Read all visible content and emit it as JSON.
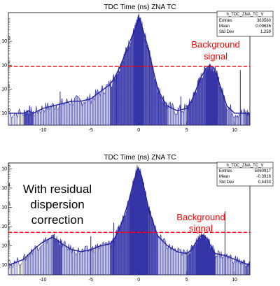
{
  "colors": {
    "histogram": "#1f1f9e",
    "threshold": "#ff0000",
    "annotation": "#ff0000",
    "frame": "#000000"
  },
  "chart_data": [
    {
      "type": "line",
      "title": "TDC Time (ns) ZNA TC",
      "stats": {
        "name": "h_TDC_ZNA_TC_V",
        "rows": [
          {
            "label": "Entries",
            "value": "363560"
          },
          {
            "label": "Mean",
            "value": "0.09636"
          },
          {
            "label": "Std Dev",
            "value": "1.259"
          }
        ]
      },
      "xlim": [
        -13.6,
        11.6
      ],
      "ylog": true,
      "ylim_log10": [
        -0.5,
        4.2
      ],
      "x_ticks": [
        {
          "v": -10,
          "label": "-10"
        },
        {
          "v": -5,
          "label": "-5"
        },
        {
          "v": 0,
          "label": "0"
        },
        {
          "v": 5,
          "label": "5"
        },
        {
          "v": 10,
          "label": "10"
        }
      ],
      "y_ticks": [
        {
          "v": 0,
          "label": "10"
        },
        {
          "v": 1,
          "label": "10"
        },
        {
          "v": 2,
          "label": "10"
        },
        {
          "v": 3,
          "label": "10"
        }
      ],
      "threshold_log10": 1.95,
      "annotations": {
        "background": [
          "Background",
          "signal"
        ]
      },
      "spikes": [
        {
          "x": -8.2,
          "log10": 0.9
        },
        {
          "x": -2.3,
          "log10": 1.6
        },
        {
          "x": 4.4,
          "log10": 0.7
        },
        {
          "x": 10.6,
          "log10": 1.8
        }
      ],
      "series": [
        {
          "values": [
            [
              -13.6,
              0.0
            ],
            [
              -12,
              0.0
            ],
            [
              -11.5,
              0.1
            ],
            [
              -11,
              0.0
            ],
            [
              -10,
              0.2
            ],
            [
              -9,
              0.3
            ],
            [
              -8,
              0.4
            ],
            [
              -7,
              0.5
            ],
            [
              -6,
              0.5
            ],
            [
              -5,
              0.6
            ],
            [
              -4,
              0.9
            ],
            [
              -3,
              1.2
            ],
            [
              -2.5,
              1.5
            ],
            [
              -2,
              1.9
            ],
            [
              -1.5,
              2.4
            ],
            [
              -1,
              2.9
            ],
            [
              -0.5,
              3.4
            ],
            [
              -0.2,
              3.7
            ],
            [
              0,
              3.95
            ],
            [
              0.2,
              3.8
            ],
            [
              0.5,
              3.4
            ],
            [
              1,
              2.7
            ],
            [
              1.5,
              1.8
            ],
            [
              2,
              1.0
            ],
            [
              2.5,
              0.6
            ],
            [
              3,
              0.3
            ],
            [
              4,
              0.1
            ],
            [
              5,
              0.2
            ],
            [
              5.5,
              0.5
            ],
            [
              6,
              1.0
            ],
            [
              6.5,
              1.5
            ],
            [
              7,
              1.85
            ],
            [
              7.4,
              2.0
            ],
            [
              7.8,
              1.9
            ],
            [
              8.2,
              1.5
            ],
            [
              8.7,
              0.9
            ],
            [
              9.2,
              0.3
            ],
            [
              10,
              0.0
            ],
            [
              11,
              0.0
            ],
            [
              11.6,
              0.0
            ]
          ]
        }
      ]
    },
    {
      "type": "line",
      "title": "TDC Time (ns) ZNA TC",
      "stats": {
        "name": "h_TDC_ZNA_TC_V",
        "rows": [
          {
            "label": "Entries",
            "value": "5060917"
          },
          {
            "label": "Mean",
            "value": "-0.3916"
          },
          {
            "label": "Std Dev",
            "value": "0.4433"
          }
        ]
      },
      "xlim": [
        -13.6,
        11.6
      ],
      "ylog": true,
      "ylim_log10": [
        -0.5,
        5.3
      ],
      "x_ticks": [
        {
          "v": -10,
          "label": "-10"
        },
        {
          "v": -5,
          "label": "-5"
        },
        {
          "v": 0,
          "label": "0"
        },
        {
          "v": 5,
          "label": "5"
        },
        {
          "v": 10,
          "label": "10"
        }
      ],
      "y_ticks": [
        {
          "v": 0,
          "label": "10"
        },
        {
          "v": 1,
          "label": "10"
        },
        {
          "v": 2,
          "label": "10"
        },
        {
          "v": 3,
          "label": "10"
        },
        {
          "v": 4,
          "label": "10"
        },
        {
          "v": 5,
          "label": "10"
        }
      ],
      "threshold_log10": 1.7,
      "annotations": {
        "residual": [
          "With residual",
          "dispersion",
          "correction"
        ],
        "background": [
          "Background",
          "signal"
        ]
      },
      "spikes": [
        {
          "x": -5.0,
          "log10": 1.5
        },
        {
          "x": -2.6,
          "log10": 2.2
        },
        {
          "x": 9.0,
          "log10": 2.8
        }
      ],
      "series": [
        {
          "values": [
            [
              -13.6,
              0.0
            ],
            [
              -12,
              0.3
            ],
            [
              -11,
              0.8
            ],
            [
              -10,
              1.2
            ],
            [
              -9,
              1.45
            ],
            [
              -8.5,
              1.3
            ],
            [
              -8,
              1.1
            ],
            [
              -7,
              0.8
            ],
            [
              -6,
              0.7
            ],
            [
              -5,
              0.8
            ],
            [
              -4,
              1.0
            ],
            [
              -3,
              1.1
            ],
            [
              -2.5,
              1.4
            ],
            [
              -2,
              1.9
            ],
            [
              -1.5,
              2.6
            ],
            [
              -1,
              3.4
            ],
            [
              -0.7,
              4.0
            ],
            [
              -0.4,
              4.5
            ],
            [
              -0.2,
              4.95
            ],
            [
              0,
              5.0
            ],
            [
              0.3,
              4.6
            ],
            [
              0.6,
              3.9
            ],
            [
              1,
              3.0
            ],
            [
              1.5,
              2.2
            ],
            [
              2,
              1.5
            ],
            [
              3,
              1.0
            ],
            [
              4,
              0.7
            ],
            [
              5,
              0.6
            ],
            [
              5.5,
              0.8
            ],
            [
              6,
              1.2
            ],
            [
              6.4,
              1.5
            ],
            [
              6.8,
              1.55
            ],
            [
              7.2,
              1.3
            ],
            [
              7.6,
              0.9
            ],
            [
              8,
              0.6
            ],
            [
              9,
              0.5
            ],
            [
              10,
              0.3
            ],
            [
              11,
              0.1
            ],
            [
              11.6,
              0.0
            ]
          ]
        }
      ]
    }
  ]
}
